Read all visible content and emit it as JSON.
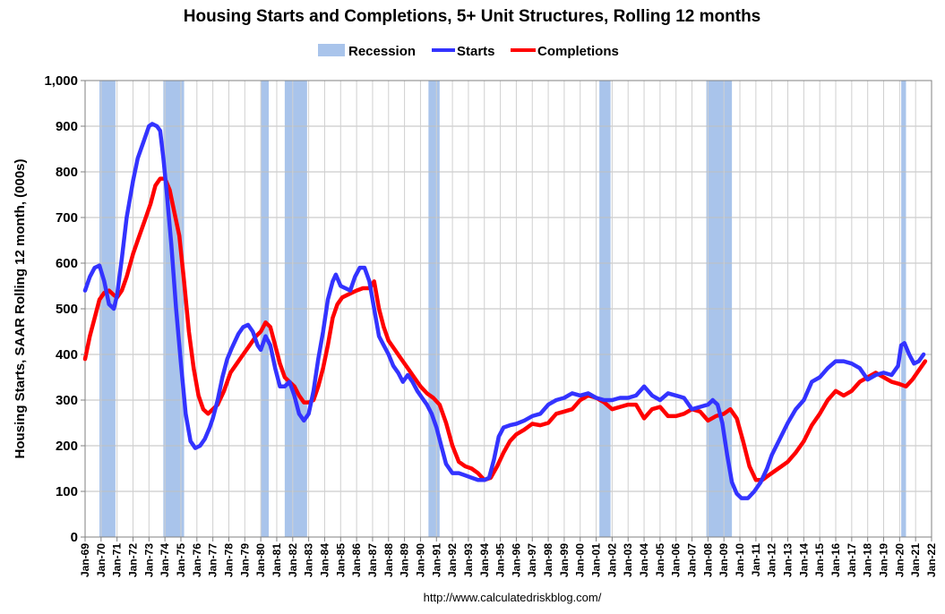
{
  "chart_data": {
    "type": "line",
    "title": "Housing Starts and Completions, 5+ Unit Structures, Rolling 12 months",
    "ylabel": "Housing Starts, SAAR Rolling 12 month, (000s)",
    "xlabel": "",
    "source": "http://www.calculatedriskblog.com/",
    "ylim": [
      0,
      1000
    ],
    "yticks": [
      0,
      100,
      200,
      300,
      400,
      500,
      600,
      700,
      800,
      900,
      1000
    ],
    "ytick_labels": [
      "0",
      "100",
      "200",
      "300",
      "400",
      "500",
      "600",
      "700",
      "800",
      "900",
      "1,000"
    ],
    "xlim": [
      1969.0,
      2022.0
    ],
    "xtick_labels": [
      "Jan-69",
      "Jan-70",
      "Jan-71",
      "Jan-72",
      "Jan-73",
      "Jan-74",
      "Jan-75",
      "Jan-76",
      "Jan-77",
      "Jan-78",
      "Jan-79",
      "Jan-80",
      "Jan-81",
      "Jan-82",
      "Jan-83",
      "Jan-84",
      "Jan-85",
      "Jan-86",
      "Jan-87",
      "Jan-88",
      "Jan-89",
      "Jan-90",
      "Jan-91",
      "Jan-92",
      "Jan-93",
      "Jan-94",
      "Jan-95",
      "Jan-96",
      "Jan-97",
      "Jan-98",
      "Jan-99",
      "Jan-00",
      "Jan-01",
      "Jan-02",
      "Jan-03",
      "Jan-04",
      "Jan-05",
      "Jan-06",
      "Jan-07",
      "Jan-08",
      "Jan-09",
      "Jan-10",
      "Jan-11",
      "Jan-12",
      "Jan-13",
      "Jan-14",
      "Jan-15",
      "Jan-16",
      "Jan-17",
      "Jan-18",
      "Jan-19",
      "Jan-20",
      "Jan-21",
      "Jan-22"
    ],
    "legend": [
      {
        "label": "Recession",
        "color": "#a9c4eb",
        "kind": "box"
      },
      {
        "label": "Starts",
        "color": "#3333ff",
        "kind": "line"
      },
      {
        "label": "Completions",
        "color": "#ff0000",
        "kind": "line"
      }
    ],
    "recessions": [
      [
        1969.9,
        1970.9
      ],
      [
        1973.9,
        1975.2
      ],
      [
        1980.0,
        1980.5
      ],
      [
        1981.5,
        1982.9
      ],
      [
        1990.5,
        1991.2
      ],
      [
        2001.2,
        2001.9
      ],
      [
        2007.9,
        2009.5
      ],
      [
        2020.1,
        2020.4
      ]
    ],
    "series": [
      {
        "name": "Starts",
        "color": "#3333ff",
        "points": [
          [
            1969.0,
            540
          ],
          [
            1969.3,
            570
          ],
          [
            1969.6,
            590
          ],
          [
            1969.9,
            595
          ],
          [
            1970.2,
            560
          ],
          [
            1970.5,
            510
          ],
          [
            1970.8,
            500
          ],
          [
            1971.0,
            530
          ],
          [
            1971.3,
            610
          ],
          [
            1971.6,
            700
          ],
          [
            1972.0,
            780
          ],
          [
            1972.3,
            830
          ],
          [
            1972.7,
            870
          ],
          [
            1973.0,
            900
          ],
          [
            1973.2,
            905
          ],
          [
            1973.5,
            900
          ],
          [
            1973.7,
            890
          ],
          [
            1973.9,
            830
          ],
          [
            1974.1,
            760
          ],
          [
            1974.4,
            640
          ],
          [
            1974.7,
            500
          ],
          [
            1975.0,
            380
          ],
          [
            1975.3,
            270
          ],
          [
            1975.6,
            210
          ],
          [
            1975.9,
            195
          ],
          [
            1976.2,
            200
          ],
          [
            1976.5,
            215
          ],
          [
            1976.8,
            240
          ],
          [
            1977.0,
            260
          ],
          [
            1977.3,
            300
          ],
          [
            1977.6,
            350
          ],
          [
            1977.9,
            390
          ],
          [
            1978.2,
            415
          ],
          [
            1978.6,
            445
          ],
          [
            1978.9,
            460
          ],
          [
            1979.2,
            465
          ],
          [
            1979.5,
            450
          ],
          [
            1979.8,
            420
          ],
          [
            1980.0,
            410
          ],
          [
            1980.3,
            440
          ],
          [
            1980.6,
            420
          ],
          [
            1980.9,
            370
          ],
          [
            1981.2,
            330
          ],
          [
            1981.5,
            330
          ],
          [
            1981.8,
            340
          ],
          [
            1982.1,
            310
          ],
          [
            1982.4,
            270
          ],
          [
            1982.7,
            255
          ],
          [
            1983.0,
            270
          ],
          [
            1983.3,
            320
          ],
          [
            1983.6,
            390
          ],
          [
            1983.9,
            450
          ],
          [
            1984.2,
            520
          ],
          [
            1984.5,
            560
          ],
          [
            1984.7,
            575
          ],
          [
            1985.0,
            550
          ],
          [
            1985.3,
            545
          ],
          [
            1985.6,
            540
          ],
          [
            1985.9,
            570
          ],
          [
            1986.2,
            590
          ],
          [
            1986.5,
            590
          ],
          [
            1986.8,
            560
          ],
          [
            1987.1,
            500
          ],
          [
            1987.4,
            440
          ],
          [
            1987.7,
            420
          ],
          [
            1988.0,
            400
          ],
          [
            1988.3,
            375
          ],
          [
            1988.6,
            360
          ],
          [
            1988.9,
            340
          ],
          [
            1989.2,
            355
          ],
          [
            1989.5,
            340
          ],
          [
            1989.8,
            320
          ],
          [
            1990.1,
            305
          ],
          [
            1990.4,
            290
          ],
          [
            1990.7,
            270
          ],
          [
            1991.0,
            240
          ],
          [
            1991.3,
            200
          ],
          [
            1991.6,
            160
          ],
          [
            1992.0,
            140
          ],
          [
            1992.4,
            140
          ],
          [
            1992.8,
            135
          ],
          [
            1993.2,
            130
          ],
          [
            1993.6,
            125
          ],
          [
            1994.0,
            125
          ],
          [
            1994.3,
            130
          ],
          [
            1994.6,
            170
          ],
          [
            1994.9,
            220
          ],
          [
            1995.2,
            240
          ],
          [
            1995.6,
            245
          ],
          [
            1996.0,
            248
          ],
          [
            1996.5,
            255
          ],
          [
            1997.0,
            265
          ],
          [
            1997.5,
            270
          ],
          [
            1998.0,
            290
          ],
          [
            1998.5,
            300
          ],
          [
            1999.0,
            305
          ],
          [
            1999.5,
            315
          ],
          [
            2000.0,
            310
          ],
          [
            2000.5,
            315
          ],
          [
            2001.0,
            305
          ],
          [
            2001.5,
            300
          ],
          [
            2002.0,
            300
          ],
          [
            2002.5,
            305
          ],
          [
            2003.0,
            305
          ],
          [
            2003.5,
            310
          ],
          [
            2004.0,
            330
          ],
          [
            2004.5,
            310
          ],
          [
            2005.0,
            300
          ],
          [
            2005.5,
            315
          ],
          [
            2006.0,
            310
          ],
          [
            2006.5,
            305
          ],
          [
            2007.0,
            280
          ],
          [
            2007.5,
            285
          ],
          [
            2008.0,
            290
          ],
          [
            2008.3,
            300
          ],
          [
            2008.6,
            290
          ],
          [
            2008.9,
            250
          ],
          [
            2009.2,
            180
          ],
          [
            2009.5,
            120
          ],
          [
            2009.8,
            95
          ],
          [
            2010.1,
            85
          ],
          [
            2010.5,
            85
          ],
          [
            2010.9,
            100
          ],
          [
            2011.3,
            120
          ],
          [
            2011.7,
            150
          ],
          [
            2012.0,
            180
          ],
          [
            2012.5,
            215
          ],
          [
            2013.0,
            250
          ],
          [
            2013.5,
            280
          ],
          [
            2014.0,
            300
          ],
          [
            2014.5,
            340
          ],
          [
            2015.0,
            350
          ],
          [
            2015.5,
            370
          ],
          [
            2016.0,
            385
          ],
          [
            2016.5,
            385
          ],
          [
            2017.0,
            380
          ],
          [
            2017.5,
            370
          ],
          [
            2018.0,
            345
          ],
          [
            2018.5,
            355
          ],
          [
            2019.0,
            360
          ],
          [
            2019.5,
            355
          ],
          [
            2019.9,
            375
          ],
          [
            2020.1,
            420
          ],
          [
            2020.3,
            425
          ],
          [
            2020.6,
            400
          ],
          [
            2020.9,
            380
          ],
          [
            2021.2,
            385
          ],
          [
            2021.5,
            400
          ]
        ]
      },
      {
        "name": "Completions",
        "color": "#ff0000",
        "points": [
          [
            1969.0,
            390
          ],
          [
            1969.3,
            440
          ],
          [
            1969.6,
            480
          ],
          [
            1969.9,
            520
          ],
          [
            1970.2,
            535
          ],
          [
            1970.5,
            540
          ],
          [
            1970.8,
            530
          ],
          [
            1971.0,
            525
          ],
          [
            1971.3,
            540
          ],
          [
            1971.6,
            570
          ],
          [
            1972.0,
            620
          ],
          [
            1972.4,
            660
          ],
          [
            1972.8,
            700
          ],
          [
            1973.1,
            730
          ],
          [
            1973.4,
            770
          ],
          [
            1973.7,
            785
          ],
          [
            1974.0,
            785
          ],
          [
            1974.3,
            760
          ],
          [
            1974.6,
            710
          ],
          [
            1974.9,
            660
          ],
          [
            1975.2,
            560
          ],
          [
            1975.5,
            450
          ],
          [
            1975.8,
            370
          ],
          [
            1976.1,
            310
          ],
          [
            1976.4,
            280
          ],
          [
            1976.7,
            270
          ],
          [
            1977.0,
            280
          ],
          [
            1977.3,
            290
          ],
          [
            1977.7,
            320
          ],
          [
            1978.1,
            360
          ],
          [
            1978.5,
            380
          ],
          [
            1978.9,
            400
          ],
          [
            1979.3,
            420
          ],
          [
            1979.7,
            440
          ],
          [
            1980.0,
            450
          ],
          [
            1980.3,
            470
          ],
          [
            1980.6,
            460
          ],
          [
            1980.9,
            420
          ],
          [
            1981.2,
            380
          ],
          [
            1981.5,
            350
          ],
          [
            1981.8,
            340
          ],
          [
            1982.1,
            330
          ],
          [
            1982.4,
            310
          ],
          [
            1982.7,
            295
          ],
          [
            1983.0,
            295
          ],
          [
            1983.3,
            300
          ],
          [
            1983.6,
            330
          ],
          [
            1983.9,
            370
          ],
          [
            1984.2,
            420
          ],
          [
            1984.5,
            480
          ],
          [
            1984.8,
            510
          ],
          [
            1985.1,
            525
          ],
          [
            1985.4,
            530
          ],
          [
            1985.7,
            535
          ],
          [
            1986.0,
            540
          ],
          [
            1986.4,
            545
          ],
          [
            1986.8,
            545
          ],
          [
            1987.1,
            560
          ],
          [
            1987.4,
            500
          ],
          [
            1987.7,
            460
          ],
          [
            1988.0,
            430
          ],
          [
            1988.4,
            410
          ],
          [
            1988.8,
            390
          ],
          [
            1989.2,
            370
          ],
          [
            1989.6,
            350
          ],
          [
            1990.0,
            330
          ],
          [
            1990.4,
            315
          ],
          [
            1990.8,
            305
          ],
          [
            1991.2,
            290
          ],
          [
            1991.6,
            250
          ],
          [
            1992.0,
            200
          ],
          [
            1992.4,
            165
          ],
          [
            1992.8,
            155
          ],
          [
            1993.2,
            150
          ],
          [
            1993.6,
            140
          ],
          [
            1994.0,
            125
          ],
          [
            1994.4,
            130
          ],
          [
            1994.8,
            155
          ],
          [
            1995.2,
            185
          ],
          [
            1995.6,
            210
          ],
          [
            1996.0,
            225
          ],
          [
            1996.5,
            235
          ],
          [
            1997.0,
            248
          ],
          [
            1997.5,
            245
          ],
          [
            1998.0,
            250
          ],
          [
            1998.5,
            270
          ],
          [
            1999.0,
            275
          ],
          [
            1999.5,
            280
          ],
          [
            2000.0,
            300
          ],
          [
            2000.5,
            310
          ],
          [
            2001.0,
            305
          ],
          [
            2001.5,
            295
          ],
          [
            2002.0,
            280
          ],
          [
            2002.5,
            285
          ],
          [
            2003.0,
            290
          ],
          [
            2003.5,
            290
          ],
          [
            2004.0,
            260
          ],
          [
            2004.5,
            280
          ],
          [
            2005.0,
            285
          ],
          [
            2005.5,
            265
          ],
          [
            2006.0,
            265
          ],
          [
            2006.5,
            270
          ],
          [
            2007.0,
            280
          ],
          [
            2007.5,
            275
          ],
          [
            2008.0,
            255
          ],
          [
            2008.5,
            265
          ],
          [
            2009.0,
            270
          ],
          [
            2009.4,
            280
          ],
          [
            2009.8,
            260
          ],
          [
            2010.2,
            210
          ],
          [
            2010.6,
            155
          ],
          [
            2011.0,
            125
          ],
          [
            2011.4,
            125
          ],
          [
            2011.8,
            135
          ],
          [
            2012.2,
            145
          ],
          [
            2012.6,
            155
          ],
          [
            2013.0,
            165
          ],
          [
            2013.5,
            185
          ],
          [
            2014.0,
            210
          ],
          [
            2014.5,
            245
          ],
          [
            2015.0,
            270
          ],
          [
            2015.5,
            300
          ],
          [
            2016.0,
            320
          ],
          [
            2016.5,
            310
          ],
          [
            2017.0,
            320
          ],
          [
            2017.5,
            340
          ],
          [
            2018.0,
            350
          ],
          [
            2018.5,
            360
          ],
          [
            2019.0,
            350
          ],
          [
            2019.5,
            340
          ],
          [
            2020.0,
            335
          ],
          [
            2020.4,
            330
          ],
          [
            2020.8,
            345
          ],
          [
            2021.2,
            365
          ],
          [
            2021.6,
            385
          ]
        ]
      }
    ]
  }
}
